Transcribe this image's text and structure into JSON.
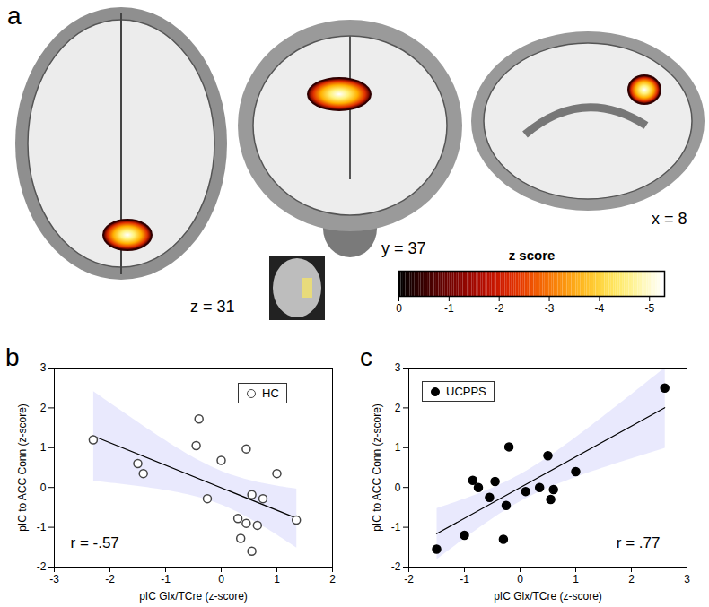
{
  "chart_data": [
    {
      "type": "brain_map",
      "panel": "a",
      "slices": [
        "z = 31",
        "y = 37",
        "x = 8"
      ],
      "colorbar": {
        "label": "z score",
        "range": [
          0,
          -5.3
        ],
        "ticks": [
          0,
          -1,
          -2,
          -3,
          -4,
          -5
        ]
      }
    },
    {
      "type": "scatter",
      "panel": "b",
      "x_label": "pIC Glx/TCre (z-score)",
      "y_label": "pIC to ACC Conn (z-score)",
      "xlim": [
        -3,
        2
      ],
      "ylim": [
        -2,
        3
      ],
      "xticks": [
        -3,
        -2,
        -1,
        0,
        1,
        2
      ],
      "yticks": [
        -2,
        -1,
        0,
        1,
        2,
        3
      ],
      "legend": "top-right",
      "series": [
        {
          "name": "HC",
          "color": "#000000",
          "marker": "open circle",
          "x": [
            -2.3,
            -1.5,
            -1.4,
            -0.45,
            -0.4,
            0.0,
            -0.25,
            0.45,
            0.55,
            0.3,
            0.75,
            0.65,
            0.45,
            0.35,
            0.55,
            1.0,
            1.35
          ],
          "y": [
            1.2,
            0.6,
            0.35,
            1.05,
            1.72,
            0.68,
            -0.28,
            0.97,
            -0.18,
            -0.78,
            -0.28,
            -0.95,
            -0.9,
            -1.28,
            -1.6,
            0.35,
            -0.82
          ]
        }
      ],
      "annotations": [
        "r = -.57"
      ]
    },
    {
      "type": "scatter",
      "panel": "c",
      "x_label": "pIC Glx/TCre (z-score)",
      "y_label": "pIC to ACC Conn (z-score)",
      "xlim": [
        -2,
        3
      ],
      "ylim": [
        -2,
        3
      ],
      "xticks": [
        -2,
        -1,
        0,
        1,
        2,
        3
      ],
      "yticks": [
        -2,
        -1,
        0,
        1,
        2,
        3
      ],
      "legend": "top-left",
      "series": [
        {
          "name": "UCPPS",
          "color": "#000000",
          "marker": "circle",
          "x": [
            -1.5,
            -1.0,
            -0.85,
            -0.75,
            -0.45,
            -0.55,
            -0.3,
            -0.25,
            -0.2,
            0.1,
            0.35,
            0.5,
            0.55,
            0.6,
            1.0,
            2.6
          ],
          "y": [
            -1.55,
            -1.2,
            0.18,
            0.0,
            0.15,
            -0.25,
            -1.3,
            -0.45,
            1.02,
            -0.1,
            0.0,
            0.8,
            -0.3,
            -0.05,
            0.4,
            2.5
          ]
        }
      ],
      "annotations": [
        "r = .77"
      ]
    }
  ]
}
